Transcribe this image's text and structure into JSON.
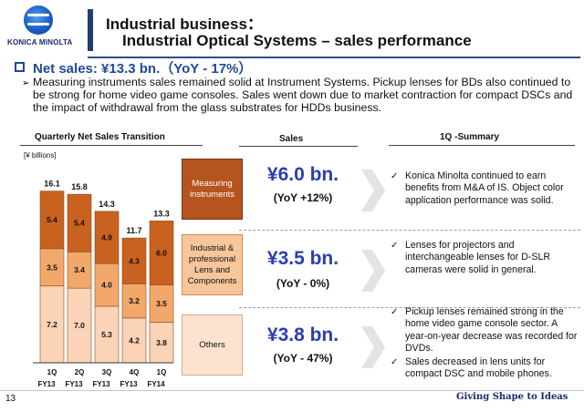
{
  "logo": {
    "name": "konica-minolta-logo",
    "text": "KONICA MINOLTA"
  },
  "title": {
    "line1": "Industrial business：",
    "line2": "Industrial Optical Systems – sales performance"
  },
  "headline": "Net sales: ¥13.3 bn.（YoY - 17%）",
  "bullet": "Measuring instruments sales remained solid at Instrument Systems. Pickup lenses for BDs also continued to be strong for home video game consoles. Sales went down due to market contraction for compact DSCs and the impact of withdrawal from the glass substrates for HDDs business.",
  "column_headers": {
    "chart": "Quarterly Net Sales Transition",
    "sales": "Sales",
    "summary": "1Q -Summary"
  },
  "colors": {
    "measuring": "#c9611f",
    "industrial": "#f2a86a",
    "others": "#fbd3b6",
    "accent_value": "#2c3fb0",
    "title_bar": "#1f3e75"
  },
  "chart_data": {
    "type": "bar",
    "stacked": true,
    "unit_label": "[¥ billions]",
    "categories": [
      "1Q FY13",
      "2Q FY13",
      "3Q FY13",
      "4Q FY13",
      "1Q FY14"
    ],
    "x_tick_lines": [
      [
        "1Q",
        "FY13"
      ],
      [
        "2Q",
        "FY13"
      ],
      [
        "3Q",
        "FY13"
      ],
      [
        "4Q",
        "FY13"
      ],
      [
        "1Q",
        "FY14"
      ]
    ],
    "totals": [
      "16.1",
      "15.8",
      "14.3",
      "11.7",
      "13.3"
    ],
    "series": [
      {
        "name": "Others",
        "values": [
          7.2,
          7.0,
          5.3,
          4.2,
          3.8
        ],
        "color": "#fbd3b6"
      },
      {
        "name": "Industrial & professional Lens and Components",
        "values": [
          3.5,
          3.4,
          4.0,
          3.2,
          3.5
        ],
        "color": "#f2a86a"
      },
      {
        "name": "Measuring instruments",
        "values": [
          5.4,
          5.4,
          4.9,
          4.3,
          6.0
        ],
        "color": "#c9611f"
      }
    ],
    "ylim": [
      0,
      16.1
    ]
  },
  "sales": [
    {
      "category": "Measuring instruments",
      "value": "¥6.0 bn.",
      "yoy": "(YoY +12%)"
    },
    {
      "category": "Industrial & professional Lens and Components",
      "value": "¥3.5 bn.",
      "yoy": "(YoY - 0%)"
    },
    {
      "category": "Others",
      "value": "¥3.8 bn.",
      "yoy": "(YoY - 47%)"
    }
  ],
  "summary": [
    "Konica Minolta continued to earn benefits from M&A of IS. Object color application performance was solid.",
    "Lenses for projectors and interchangeable lenses for D-SLR cameras were solid in general.",
    "Pickup lenses remained strong in the home video game console sector. A year-on-year decrease was recorded for DVDs.",
    "Sales decreased in lens units for compact DSC and mobile phones."
  ],
  "footer": {
    "page": "13",
    "tagline": "Giving Shape to Ideas"
  }
}
